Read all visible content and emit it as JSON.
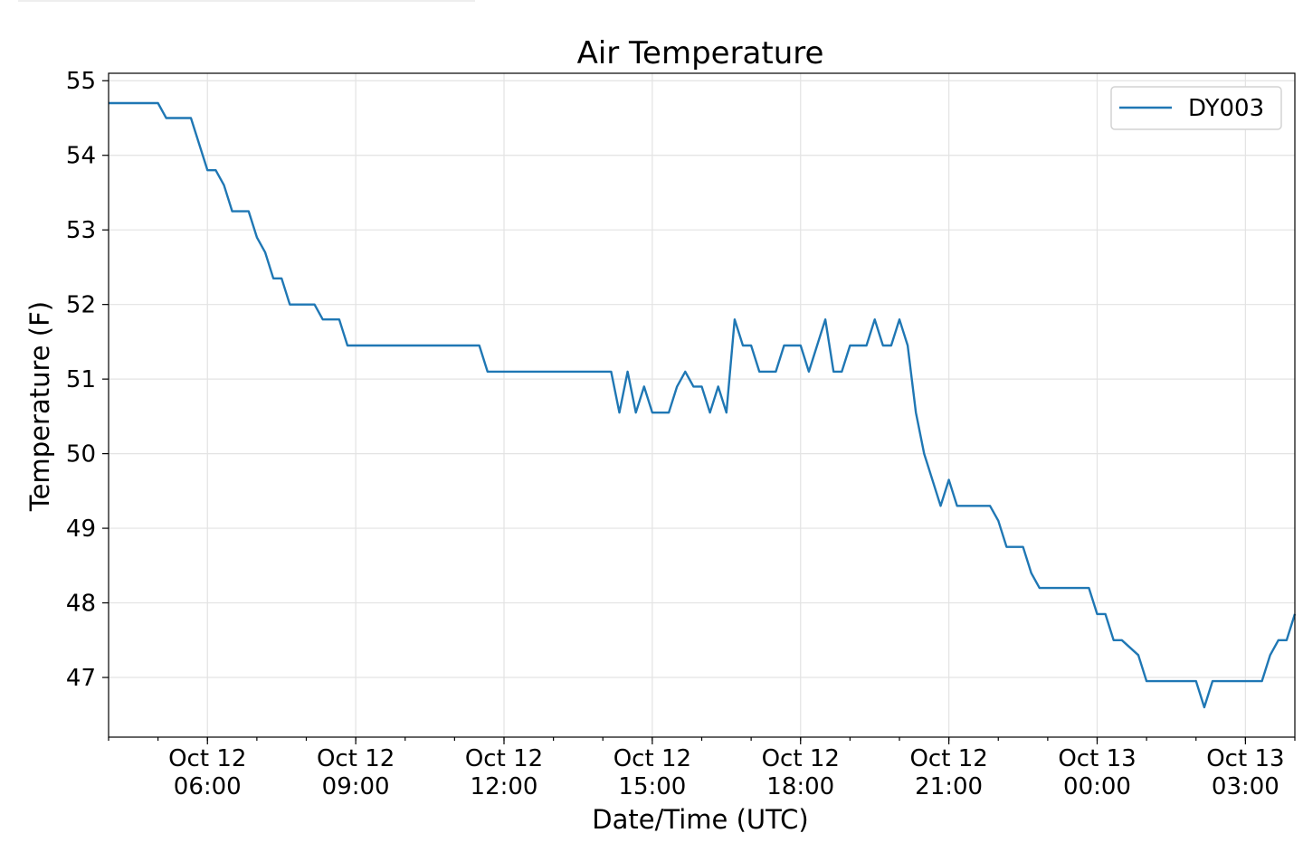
{
  "chart_data": {
    "type": "line",
    "title": "Air Temperature",
    "xlabel": "Date/Time (UTC)",
    "ylabel": "Temperature (F)",
    "xlim": [
      "2019-10-12T04:00",
      "2019-10-13T04:00"
    ],
    "ylim": [
      46.2,
      55.1
    ],
    "grid": true,
    "legend_position": "upper right",
    "y_ticks": [
      "47",
      "48",
      "49",
      "50",
      "51",
      "52",
      "53",
      "54",
      "55"
    ],
    "x_ticks": [
      {
        "line1": "Oct 12",
        "line2": "06:00"
      },
      {
        "line1": "Oct 12",
        "line2": "09:00"
      },
      {
        "line1": "Oct 12",
        "line2": "12:00"
      },
      {
        "line1": "Oct 12",
        "line2": "15:00"
      },
      {
        "line1": "Oct 12",
        "line2": "18:00"
      },
      {
        "line1": "Oct 12",
        "line2": "21:00"
      },
      {
        "line1": "Oct 13",
        "line2": "00:00"
      },
      {
        "line1": "Oct 13",
        "line2": "03:00"
      }
    ],
    "series": [
      {
        "name": "DY003",
        "color": "#1f77b4",
        "x": [
          "2019-10-12T04:00",
          "2019-10-12T05:00",
          "2019-10-12T05:10",
          "2019-10-12T05:40",
          "2019-10-12T06:00",
          "2019-10-12T06:10",
          "2019-10-12T06:20",
          "2019-10-12T06:30",
          "2019-10-12T06:50",
          "2019-10-12T07:00",
          "2019-10-12T07:10",
          "2019-10-12T07:20",
          "2019-10-12T07:30",
          "2019-10-12T07:40",
          "2019-10-12T08:10",
          "2019-10-12T08:20",
          "2019-10-12T08:40",
          "2019-10-12T08:50",
          "2019-10-12T11:30",
          "2019-10-12T11:40",
          "2019-10-12T14:10",
          "2019-10-12T14:20",
          "2019-10-12T14:30",
          "2019-10-12T14:40",
          "2019-10-12T14:50",
          "2019-10-12T15:00",
          "2019-10-12T15:20",
          "2019-10-12T15:30",
          "2019-10-12T15:40",
          "2019-10-12T15:50",
          "2019-10-12T16:00",
          "2019-10-12T16:10",
          "2019-10-12T16:20",
          "2019-10-12T16:30",
          "2019-10-12T16:40",
          "2019-10-12T16:50",
          "2019-10-12T17:00",
          "2019-10-12T17:10",
          "2019-10-12T17:30",
          "2019-10-12T17:40",
          "2019-10-12T18:00",
          "2019-10-12T18:10",
          "2019-10-12T18:30",
          "2019-10-12T18:40",
          "2019-10-12T18:50",
          "2019-10-12T19:00",
          "2019-10-12T19:20",
          "2019-10-12T19:30",
          "2019-10-12T19:40",
          "2019-10-12T19:50",
          "2019-10-12T20:00",
          "2019-10-12T20:10",
          "2019-10-12T20:20",
          "2019-10-12T20:30",
          "2019-10-12T20:50",
          "2019-10-12T21:00",
          "2019-10-12T21:10",
          "2019-10-12T21:50",
          "2019-10-12T22:00",
          "2019-10-12T22:10",
          "2019-10-12T22:30",
          "2019-10-12T22:40",
          "2019-10-12T22:50",
          "2019-10-12T23:50",
          "2019-10-13T00:00",
          "2019-10-13T00:10",
          "2019-10-13T00:20",
          "2019-10-13T00:30",
          "2019-10-13T00:50",
          "2019-10-13T01:00",
          "2019-10-13T01:10",
          "2019-10-13T02:00",
          "2019-10-13T02:10",
          "2019-10-13T02:20",
          "2019-10-13T03:20",
          "2019-10-13T03:30",
          "2019-10-13T03:40",
          "2019-10-13T03:50",
          "2019-10-13T04:00"
        ],
        "y": [
          54.7,
          54.7,
          54.5,
          54.5,
          53.8,
          53.8,
          53.6,
          53.25,
          53.25,
          52.9,
          52.7,
          52.35,
          52.35,
          52.0,
          52.0,
          51.8,
          51.8,
          51.45,
          51.45,
          51.1,
          51.1,
          50.55,
          51.1,
          50.55,
          50.9,
          50.55,
          50.55,
          50.9,
          51.1,
          50.9,
          50.9,
          50.55,
          50.9,
          50.55,
          51.8,
          51.45,
          51.45,
          51.1,
          51.1,
          51.45,
          51.45,
          51.1,
          51.8,
          51.1,
          51.1,
          51.45,
          51.45,
          51.8,
          51.45,
          51.45,
          51.8,
          51.45,
          50.55,
          50.0,
          49.3,
          49.65,
          49.3,
          49.3,
          49.1,
          48.75,
          48.75,
          48.4,
          48.2,
          48.2,
          47.85,
          47.85,
          47.5,
          47.5,
          47.3,
          46.95,
          46.95,
          46.95,
          46.6,
          46.95,
          46.95,
          47.3,
          47.5,
          47.5,
          47.85
        ]
      }
    ]
  }
}
